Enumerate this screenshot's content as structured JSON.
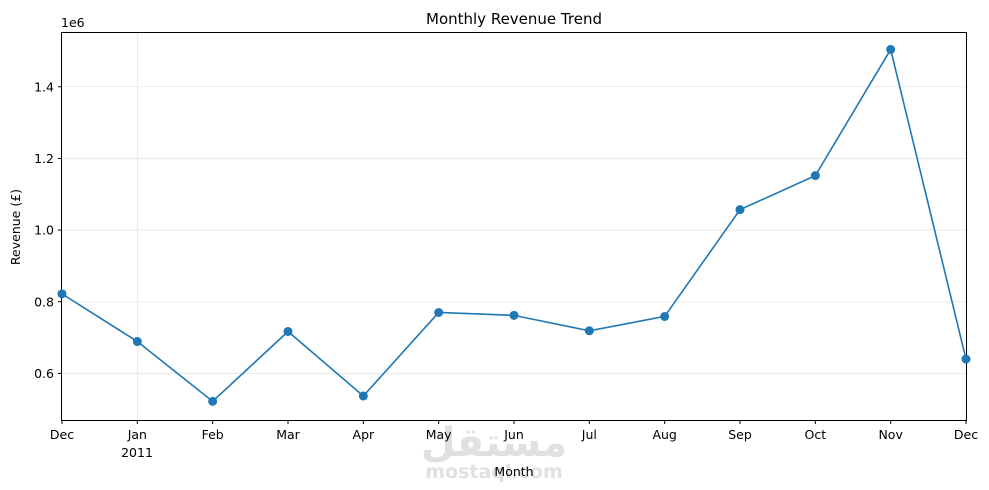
{
  "chart_data": {
    "type": "line",
    "title": "Monthly Revenue Trend",
    "xlabel": "Month",
    "ylabel": "Revenue (£)",
    "y_scale_label": "1e6",
    "categories": [
      "Dec",
      "Jan",
      "Feb",
      "Mar",
      "Apr",
      "May",
      "Jun",
      "Jul",
      "Aug",
      "Sep",
      "Oct",
      "Nov",
      "Dec"
    ],
    "year_label": "2011",
    "series": [
      {
        "values": [
          822000,
          689000,
          522000,
          717000,
          537000,
          770000,
          762000,
          719000,
          759000,
          1057000,
          1152000,
          1504000,
          640000
        ]
      }
    ],
    "ylim": [
      470000,
      1550000
    ],
    "y_ticks": [
      600000,
      800000,
      1000000,
      1200000,
      1400000
    ],
    "y_tick_labels": [
      "0.6",
      "0.8",
      "1.0",
      "1.2",
      "1.4"
    ],
    "grid": true,
    "legend": "none",
    "line_color": "#1f77b4",
    "grid_color": "#e6e6e6"
  },
  "watermark": {
    "arabic": "مستقل",
    "latin": "mostaql.com"
  }
}
